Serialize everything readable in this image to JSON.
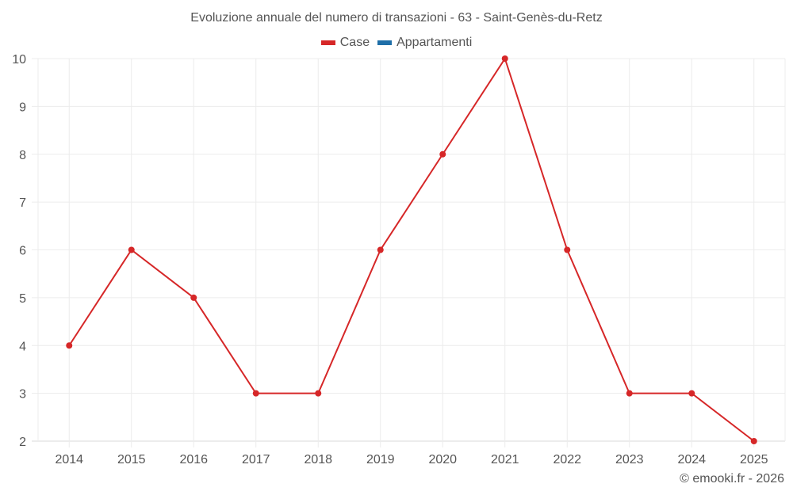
{
  "title": "Evoluzione annuale del numero di transazioni - 63 - Saint-Genès-du-Retz",
  "legend": [
    {
      "label": "Case",
      "color": "#d62728"
    },
    {
      "label": "Appartamenti",
      "color": "#1f6fa8"
    }
  ],
  "credit": "© emooki.fr - 2026",
  "chart_data": {
    "type": "line",
    "title": "Evoluzione annuale del numero di transazioni - 63 - Saint-Genès-du-Retz",
    "xlabel": "",
    "ylabel": "",
    "categories": [
      "2014",
      "2015",
      "2016",
      "2017",
      "2018",
      "2019",
      "2020",
      "2021",
      "2022",
      "2023",
      "2024",
      "2025"
    ],
    "series": [
      {
        "name": "Case",
        "color": "#d62728",
        "values": [
          4,
          6,
          5,
          3,
          3,
          6,
          8,
          10,
          6,
          3,
          3,
          2
        ]
      },
      {
        "name": "Appartamenti",
        "color": "#1f6fa8",
        "values": []
      }
    ],
    "ylim": [
      2,
      10
    ],
    "yticks": [
      2,
      3,
      4,
      5,
      6,
      7,
      8,
      9,
      10
    ],
    "grid": true,
    "legend_position": "top"
  }
}
